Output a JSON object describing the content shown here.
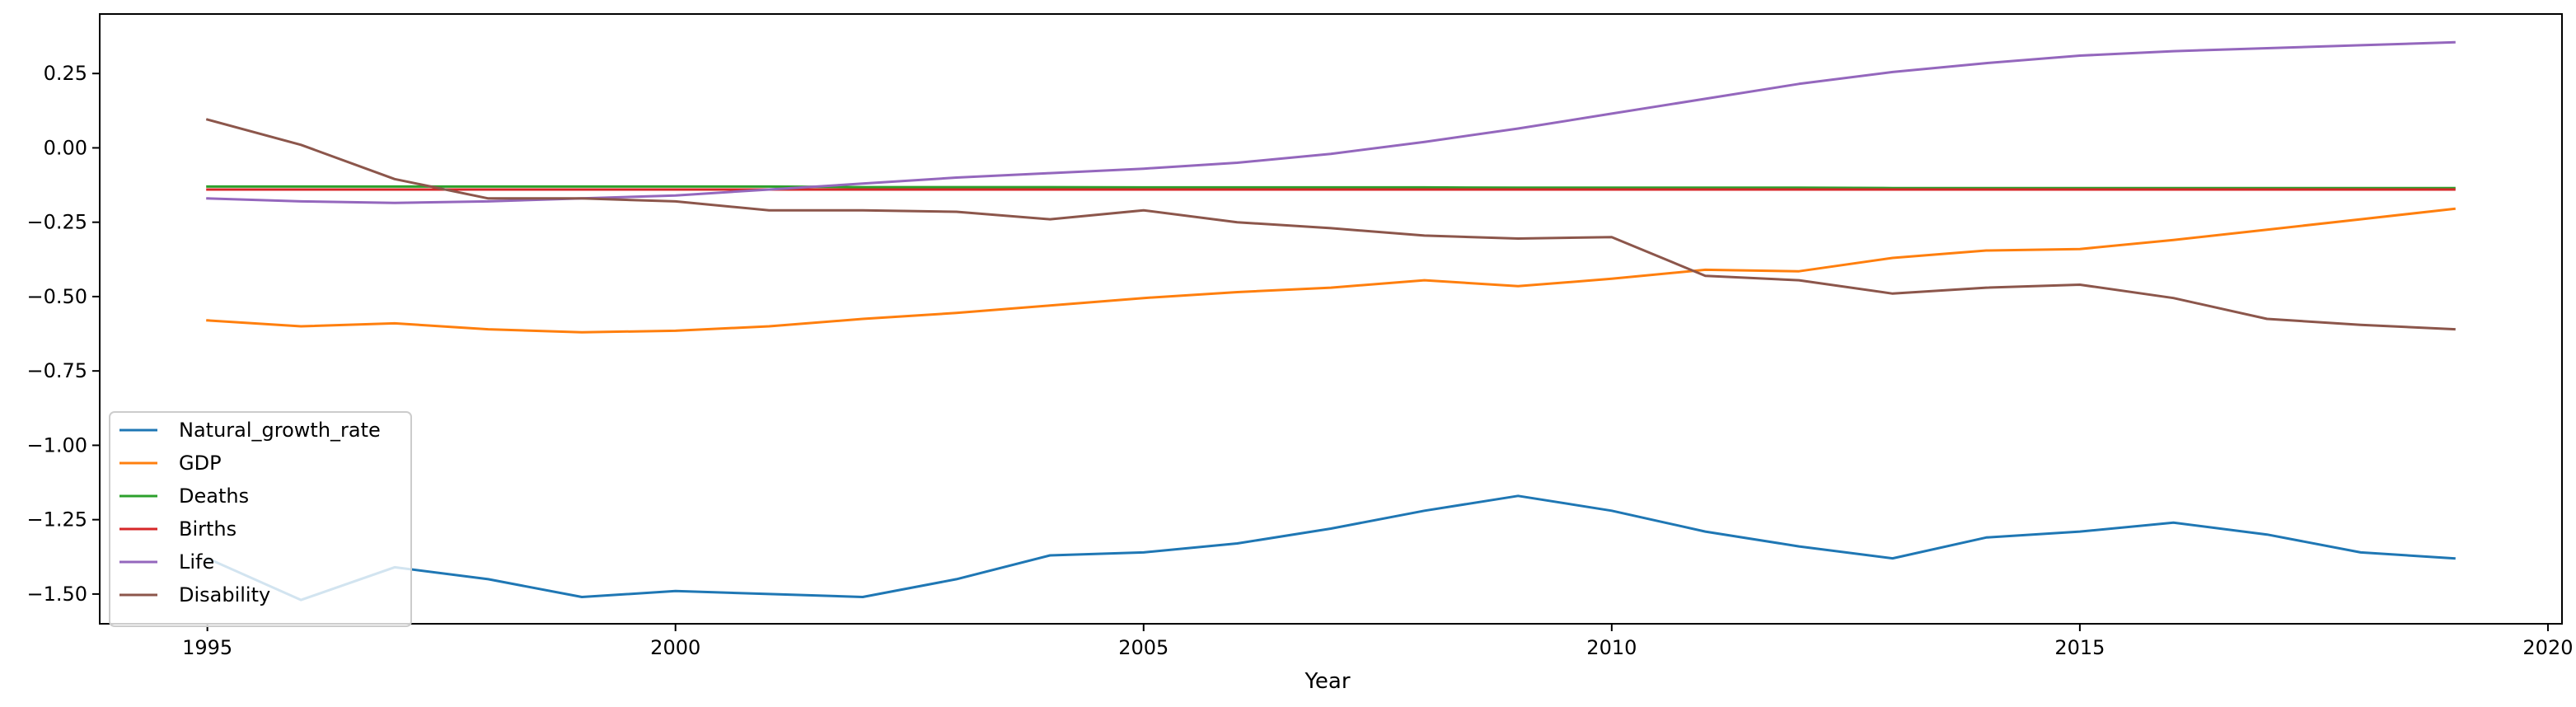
{
  "chart_data": {
    "type": "line",
    "title": "",
    "xlabel": "Year",
    "ylabel": "",
    "xlim": [
      1993.85,
      2020.15
    ],
    "ylim": [
      -1.6,
      0.45
    ],
    "xticks": [
      1995,
      2000,
      2005,
      2010,
      2015,
      2020
    ],
    "yticks": [
      0.25,
      0.0,
      -0.25,
      -0.5,
      -0.75,
      -1.0,
      -1.25,
      -1.5
    ],
    "ytick_labels": [
      "0.25",
      "0.00",
      "−0.25",
      "−0.50",
      "−0.75",
      "−1.00",
      "−1.25",
      "−1.50"
    ],
    "grid": false,
    "legend_position": "lower-left",
    "x": [
      1995,
      1996,
      1997,
      1998,
      1999,
      2000,
      2001,
      2002,
      2003,
      2004,
      2005,
      2006,
      2007,
      2008,
      2009,
      2010,
      2011,
      2012,
      2013,
      2014,
      2015,
      2016,
      2017,
      2018,
      2019
    ],
    "series": [
      {
        "name": "Natural_growth_rate",
        "color": "#1f77b4",
        "values": [
          -1.38,
          -1.52,
          -1.41,
          -1.45,
          -1.51,
          -1.49,
          -1.5,
          -1.51,
          -1.45,
          -1.37,
          -1.36,
          -1.33,
          -1.28,
          -1.22,
          -1.17,
          -1.22,
          -1.29,
          -1.34,
          -1.38,
          -1.31,
          -1.29,
          -1.26,
          -1.3,
          -1.36,
          -1.38
        ]
      },
      {
        "name": "GDP",
        "color": "#ff7f0e",
        "values": [
          -0.58,
          -0.6,
          -0.59,
          -0.61,
          -0.62,
          -0.615,
          -0.6,
          -0.575,
          -0.555,
          -0.53,
          -0.505,
          -0.485,
          -0.47,
          -0.445,
          -0.465,
          -0.44,
          -0.41,
          -0.415,
          -0.37,
          -0.345,
          -0.34,
          -0.31,
          -0.275,
          -0.24,
          -0.205
        ]
      },
      {
        "name": "Deaths",
        "color": "#2ca02c",
        "values": [
          -0.13,
          -0.13,
          -0.13,
          -0.13,
          -0.13,
          -0.13,
          -0.13,
          -0.132,
          -0.132,
          -0.132,
          -0.133,
          -0.133,
          -0.133,
          -0.133,
          -0.134,
          -0.134,
          -0.134,
          -0.134,
          -0.135,
          -0.135,
          -0.135,
          -0.135,
          -0.135,
          -0.135,
          -0.135
        ]
      },
      {
        "name": "Births",
        "color": "#d62728",
        "values": [
          -0.14,
          -0.14,
          -0.14,
          -0.14,
          -0.14,
          -0.14,
          -0.14,
          -0.14,
          -0.14,
          -0.14,
          -0.14,
          -0.14,
          -0.14,
          -0.14,
          -0.14,
          -0.14,
          -0.14,
          -0.14,
          -0.14,
          -0.14,
          -0.14,
          -0.14,
          -0.14,
          -0.14,
          -0.14
        ]
      },
      {
        "name": "Life",
        "color": "#9467bd",
        "values": [
          -0.17,
          -0.18,
          -0.185,
          -0.18,
          -0.17,
          -0.16,
          -0.14,
          -0.12,
          -0.1,
          -0.085,
          -0.07,
          -0.05,
          -0.02,
          0.02,
          0.065,
          0.115,
          0.165,
          0.215,
          0.255,
          0.285,
          0.31,
          0.325,
          0.335,
          0.345,
          0.355
        ]
      },
      {
        "name": "Disability",
        "color": "#8c564b",
        "values": [
          0.095,
          0.01,
          -0.105,
          -0.17,
          -0.17,
          -0.18,
          -0.21,
          -0.21,
          -0.215,
          -0.24,
          -0.21,
          -0.25,
          -0.27,
          -0.295,
          -0.305,
          -0.3,
          -0.43,
          -0.445,
          -0.49,
          -0.47,
          -0.46,
          -0.505,
          -0.575,
          -0.595,
          -0.61
        ]
      }
    ]
  }
}
